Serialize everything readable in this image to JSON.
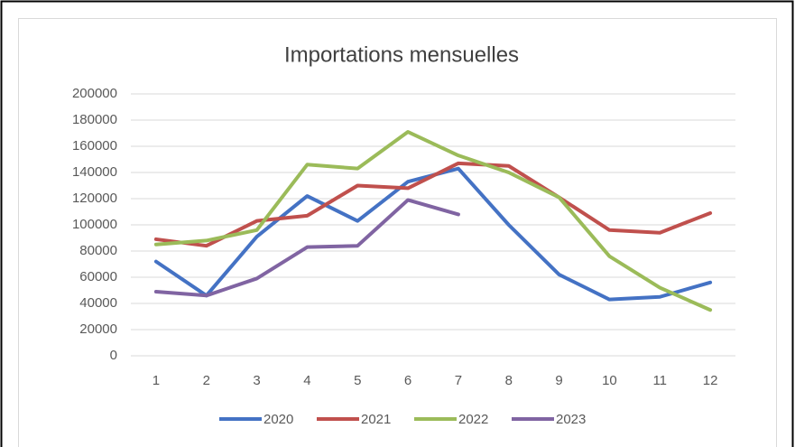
{
  "chart_data": {
    "type": "line",
    "title": "Importations mensuelles",
    "categories": [
      "1",
      "2",
      "3",
      "4",
      "5",
      "6",
      "7",
      "8",
      "9",
      "10",
      "11",
      "12"
    ],
    "series": [
      {
        "name": "2020",
        "color": "#4472c4",
        "values": [
          72000,
          46000,
          91000,
          122000,
          103000,
          133000,
          143000,
          100000,
          62000,
          43000,
          45000,
          56000
        ]
      },
      {
        "name": "2021",
        "color": "#c0504d",
        "values": [
          89000,
          84000,
          103000,
          107000,
          130000,
          128000,
          147000,
          145000,
          121000,
          96000,
          94000,
          109000
        ]
      },
      {
        "name": "2022",
        "color": "#9bbb59",
        "values": [
          85000,
          88000,
          96000,
          146000,
          143000,
          171000,
          153000,
          140000,
          121000,
          76000,
          52000,
          35000
        ]
      },
      {
        "name": "2023",
        "color": "#8064a2",
        "values": [
          49000,
          46000,
          59000,
          83000,
          84000,
          119000,
          108000,
          null,
          null,
          null,
          null,
          null
        ]
      }
    ],
    "ylim": [
      0,
      200000
    ],
    "yticks": [
      0,
      20000,
      40000,
      60000,
      80000,
      100000,
      120000,
      140000,
      160000,
      180000,
      200000
    ],
    "grid": true,
    "legend": "bottom"
  }
}
